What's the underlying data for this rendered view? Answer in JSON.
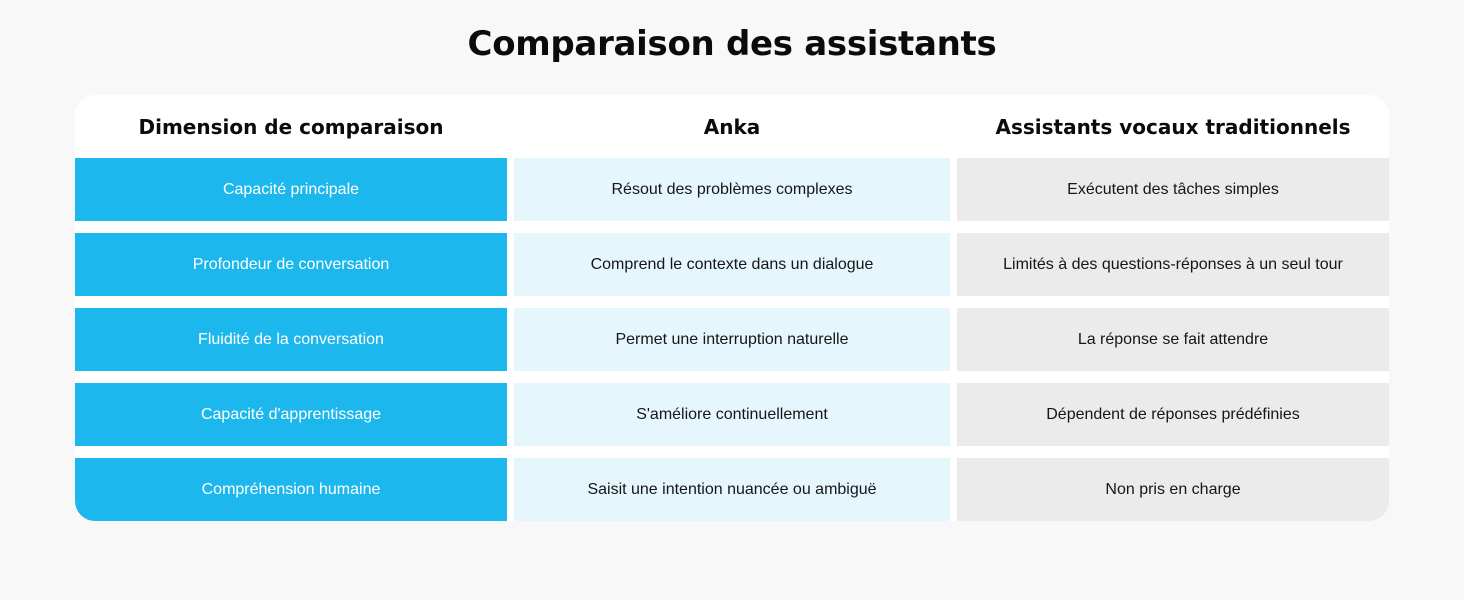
{
  "chart_data": {
    "type": "table",
    "title": "Comparaison des assistants",
    "columns": [
      "Dimension de comparaison",
      "Anka",
      "Assistants vocaux traditionnels"
    ],
    "rows": [
      [
        "Capacité principale",
        "Résout des problèmes complexes",
        "Exécutent des tâches simples"
      ],
      [
        "Profondeur de conversation",
        "Comprend le contexte dans un dialogue",
        "Limités à des questions-réponses à un seul tour"
      ],
      [
        "Fluidité de la conversation",
        "Permet une interruption naturelle",
        "La réponse se fait attendre"
      ],
      [
        "Capacité d'apprentissage",
        "S'améliore continuellement",
        "Dépendent de réponses prédéfinies"
      ],
      [
        "Compréhension humaine",
        "Saisit une intention nuancée ou ambiguë",
        "Non pris en charge"
      ]
    ],
    "layout": {
      "legend": "none",
      "grid": "off",
      "header_position": "top",
      "column_styles": [
        "solid-accent",
        "tint-accent",
        "neutral-gray"
      ]
    }
  },
  "colors": {
    "page_bg": "#f8f8f8",
    "card_bg": "#ffffff",
    "dimension_cell_bg": "#1cb8ed",
    "anka_cell_bg": "#e6f6fd",
    "traditional_cell_bg": "#ebebeb",
    "dimension_text": "#ffffff",
    "body_text": "#161616",
    "heading_text": "#0b0b0b"
  }
}
